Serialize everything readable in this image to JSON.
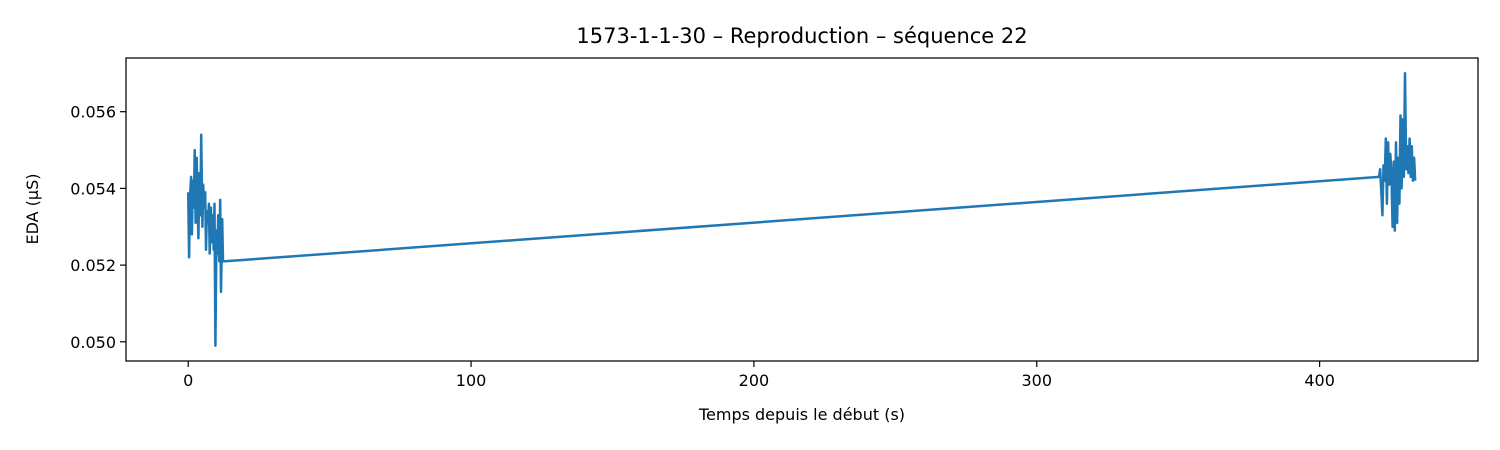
{
  "chart_data": {
    "type": "line",
    "title": "1573-1-1-30 – Reproduction – séquence 22",
    "xlabel": "Temps depuis le début (s)",
    "ylabel": "EDA (µS)",
    "xlim": [
      -22,
      456
    ],
    "ylim": [
      0.0495,
      0.0574
    ],
    "xticks": [
      0,
      100,
      200,
      300,
      400
    ],
    "xtick_labels": [
      "0",
      "100",
      "200",
      "300",
      "400"
    ],
    "yticks": [
      0.05,
      0.052,
      0.054,
      0.056
    ],
    "ytick_labels": [
      "0.050",
      "0.052",
      "0.054",
      "0.056"
    ],
    "grid": false,
    "legend": "none",
    "series": [
      {
        "color": "#1f77b4",
        "x": [
          0,
          0.3,
          0.6,
          1,
          1.3,
          1.6,
          2,
          2.3,
          2.6,
          3,
          3.3,
          3.6,
          4,
          4.3,
          4.6,
          5,
          5.3,
          5.6,
          6,
          6.3,
          6.6,
          7,
          7.3,
          7.6,
          8,
          8.3,
          8.6,
          9,
          9.3,
          9.6,
          10,
          10.3,
          10.6,
          11,
          11.3,
          11.6,
          12,
          12.3,
          12.6,
          13,
          421,
          421.4,
          421.8,
          422.2,
          422.6,
          423,
          423.4,
          423.8,
          424.2,
          424.6,
          425,
          425.4,
          425.8,
          426.2,
          426.6,
          427,
          427.4,
          427.8,
          428.2,
          428.6,
          429,
          429.4,
          429.8,
          430.2,
          430.6,
          431,
          431.4,
          431.8,
          432.2,
          432.6,
          433,
          433.4,
          433.8
        ],
        "y": [
          0.0539,
          0.0522,
          0.0537,
          0.0543,
          0.0528,
          0.0542,
          0.0535,
          0.055,
          0.0531,
          0.0548,
          0.0536,
          0.0527,
          0.0544,
          0.0533,
          0.0554,
          0.053,
          0.0541,
          0.0535,
          0.0539,
          0.0524,
          0.0534,
          0.0531,
          0.0536,
          0.0523,
          0.0535,
          0.0526,
          0.0533,
          0.0524,
          0.0536,
          0.0499,
          0.0529,
          0.0523,
          0.0533,
          0.0521,
          0.0537,
          0.0513,
          0.0532,
          0.0521,
          0.0521,
          0.0521,
          0.0543,
          0.0545,
          0.0539,
          0.0533,
          0.0546,
          0.0542,
          0.0553,
          0.0536,
          0.0552,
          0.0541,
          0.0549,
          0.0544,
          0.053,
          0.0547,
          0.0529,
          0.0552,
          0.0531,
          0.0548,
          0.0536,
          0.0559,
          0.054,
          0.0558,
          0.0543,
          0.057,
          0.0545,
          0.0551,
          0.0544,
          0.0553,
          0.0543,
          0.0551,
          0.0542,
          0.0548,
          0.0542
        ]
      }
    ]
  }
}
